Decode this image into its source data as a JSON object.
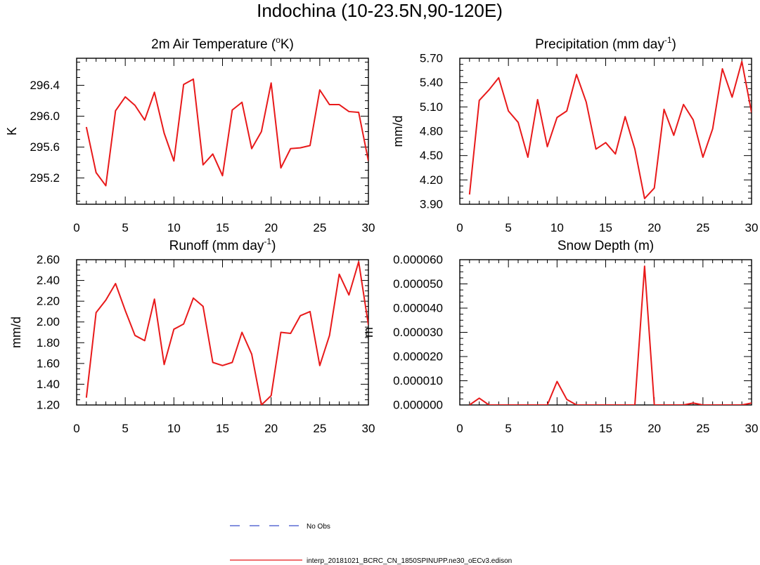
{
  "figure": {
    "title": "Indochina (10-23.5N,90-120E)"
  },
  "legend": {
    "entries": [
      {
        "label": "No Obs",
        "color": "#3a4ec9",
        "style": "dashed"
      },
      {
        "label": "interp_20181021_BCRC_CN_1850SPINUPP.ne30_oECv3.edison",
        "color": "#e8191a",
        "style": "solid"
      }
    ]
  },
  "chart_data": [
    {
      "type": "line",
      "title": "2m Air Temperature (°K)",
      "title_parts": {
        "pre": "2m Air Temperature (",
        "sup": "o",
        "post": "K)"
      },
      "xlabel": "",
      "ylabel": "K",
      "xlim": [
        0,
        30
      ],
      "ylim": [
        294.86,
        296.75
      ],
      "xticks": [
        0,
        5,
        10,
        15,
        20,
        25,
        30
      ],
      "yticks": [
        295.2,
        295.6,
        296.0,
        296.4
      ],
      "ytick_labels": [
        "295.2",
        "295.6",
        "296.0",
        "296.4"
      ],
      "series": [
        {
          "color": "#e8191a",
          "x": [
            1,
            2,
            3,
            4,
            5,
            6,
            7,
            8,
            9,
            10,
            11,
            12,
            13,
            14,
            15,
            16,
            17,
            18,
            19,
            20,
            21,
            22,
            23,
            24,
            25,
            26,
            27,
            28,
            29,
            30
          ],
          "values": [
            295.86,
            295.27,
            295.1,
            296.07,
            296.25,
            296.14,
            295.95,
            296.31,
            295.78,
            295.42,
            296.41,
            296.48,
            295.37,
            295.51,
            295.23,
            296.08,
            296.18,
            295.58,
            295.8,
            296.43,
            295.33,
            295.58,
            295.59,
            295.62,
            296.34,
            296.15,
            296.15,
            296.06,
            296.05,
            295.42
          ]
        }
      ]
    },
    {
      "type": "line",
      "title": "Precipitation (mm day-1)",
      "title_parts": {
        "pre": "Precipitation (mm day",
        "sup": "-1",
        "post": ")"
      },
      "xlabel": "",
      "ylabel": "mm/d",
      "xlim": [
        0,
        30
      ],
      "ylim": [
        3.9,
        5.7
      ],
      "xticks": [
        0,
        5,
        10,
        15,
        20,
        25,
        30
      ],
      "yticks": [
        3.9,
        4.2,
        4.5,
        4.8,
        5.1,
        5.4,
        5.7
      ],
      "ytick_labels": [
        "3.90",
        "4.20",
        "4.50",
        "4.80",
        "5.10",
        "5.40",
        "5.70"
      ],
      "series": [
        {
          "color": "#e8191a",
          "x": [
            1,
            2,
            3,
            4,
            5,
            6,
            7,
            8,
            9,
            10,
            11,
            12,
            13,
            14,
            15,
            16,
            17,
            18,
            19,
            20,
            21,
            22,
            23,
            24,
            25,
            26,
            27,
            28,
            29,
            30
          ],
          "values": [
            4.02,
            5.18,
            5.31,
            5.46,
            5.05,
            4.91,
            4.48,
            5.19,
            4.61,
            4.97,
            5.05,
            5.5,
            5.16,
            4.58,
            4.66,
            4.52,
            4.98,
            4.58,
            3.97,
            4.1,
            5.07,
            4.75,
            5.13,
            4.94,
            4.48,
            4.83,
            5.57,
            5.22,
            5.66,
            5.03
          ]
        }
      ]
    },
    {
      "type": "line",
      "title": "Runoff (mm day-1)",
      "title_parts": {
        "pre": "Runoff (mm day",
        "sup": "-1",
        "post": ")"
      },
      "xlabel": "",
      "ylabel": "mm/d",
      "xlim": [
        0,
        30
      ],
      "ylim": [
        1.2,
        2.6
      ],
      "xticks": [
        0,
        5,
        10,
        15,
        20,
        25,
        30
      ],
      "yticks": [
        1.2,
        1.4,
        1.6,
        1.8,
        2.0,
        2.2,
        2.4,
        2.6
      ],
      "ytick_labels": [
        "1.20",
        "1.40",
        "1.60",
        "1.80",
        "2.00",
        "2.20",
        "2.40",
        "2.60"
      ],
      "series": [
        {
          "color": "#e8191a",
          "x": [
            1,
            2,
            3,
            4,
            5,
            6,
            7,
            8,
            9,
            10,
            11,
            12,
            13,
            14,
            15,
            16,
            17,
            18,
            19,
            20,
            21,
            22,
            23,
            24,
            25,
            26,
            27,
            28,
            29,
            30
          ],
          "values": [
            1.27,
            2.09,
            2.21,
            2.37,
            2.11,
            1.87,
            1.82,
            2.22,
            1.59,
            1.93,
            1.98,
            2.23,
            2.15,
            1.61,
            1.58,
            1.61,
            1.9,
            1.69,
            1.2,
            1.29,
            1.9,
            1.89,
            2.06,
            2.1,
            1.58,
            1.87,
            2.46,
            2.26,
            2.58,
            1.97
          ]
        }
      ]
    },
    {
      "type": "line",
      "title": "Snow Depth (m)",
      "title_parts": {
        "pre": "Snow Depth (m)",
        "sup": "",
        "post": ""
      },
      "xlabel": "",
      "ylabel": "m",
      "xlim": [
        0,
        30
      ],
      "ylim": [
        0,
        6e-05
      ],
      "xticks": [
        0,
        5,
        10,
        15,
        20,
        25,
        30
      ],
      "yticks": [
        0,
        1e-05,
        2e-05,
        3e-05,
        4e-05,
        5e-05,
        6e-05
      ],
      "ytick_labels": [
        "0.000000",
        "0.000010",
        "0.000020",
        "0.000030",
        "0.000040",
        "0.000050",
        "0.000060"
      ],
      "series": [
        {
          "color": "#e8191a",
          "x": [
            1,
            2,
            3,
            4,
            5,
            6,
            7,
            8,
            9,
            10,
            11,
            12,
            13,
            14,
            15,
            16,
            17,
            18,
            19,
            20,
            21,
            22,
            23,
            24,
            25,
            26,
            27,
            28,
            29,
            30
          ],
          "values": [
            0,
            2.8e-06,
            0,
            0,
            0,
            0,
            0,
            0,
            0,
            9.7e-06,
            2.3e-06,
            0,
            0,
            0,
            0,
            0,
            0,
            0,
            5.73e-05,
            0,
            0,
            0,
            0,
            8e-07,
            0,
            0,
            0,
            0,
            0,
            8e-07
          ]
        }
      ]
    }
  ]
}
